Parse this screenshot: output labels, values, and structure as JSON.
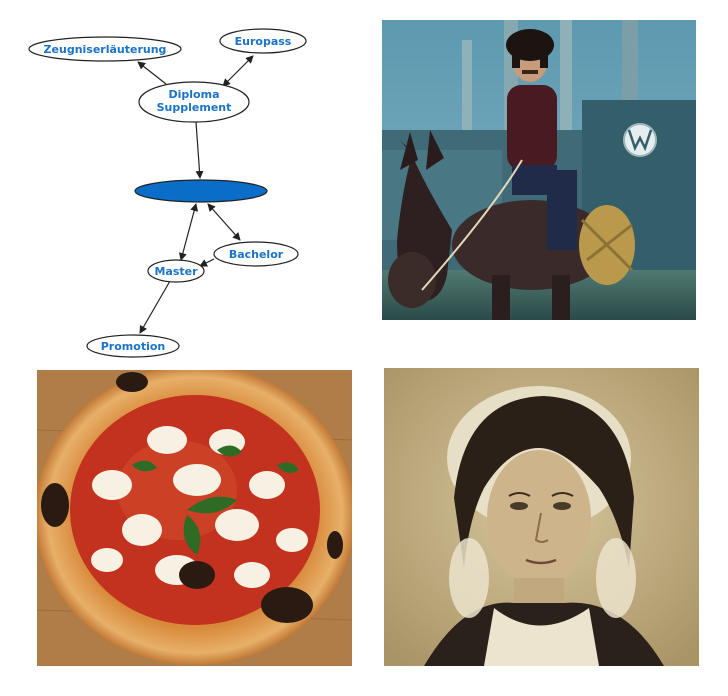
{
  "diagram": {
    "nodes": {
      "zeugnis": "Zeugniserläuterung",
      "europass": "Europass",
      "diploma_line1": "Diploma",
      "diploma_line2": "Supplement",
      "center": "",
      "bachelor": "Bachelor",
      "master": "Master",
      "promotion": "Promotion"
    },
    "colors": {
      "label": "#1a73c8",
      "center_fill": "#0a6ec8",
      "stroke": "#222222"
    }
  },
  "photos": {
    "rider": "man riding a donkey in front of a Volkswagen factory",
    "pizza": "margherita pizza with basil and mozzarella",
    "portrait": "vintage sepia portrait of a woman with lace bonnet"
  }
}
